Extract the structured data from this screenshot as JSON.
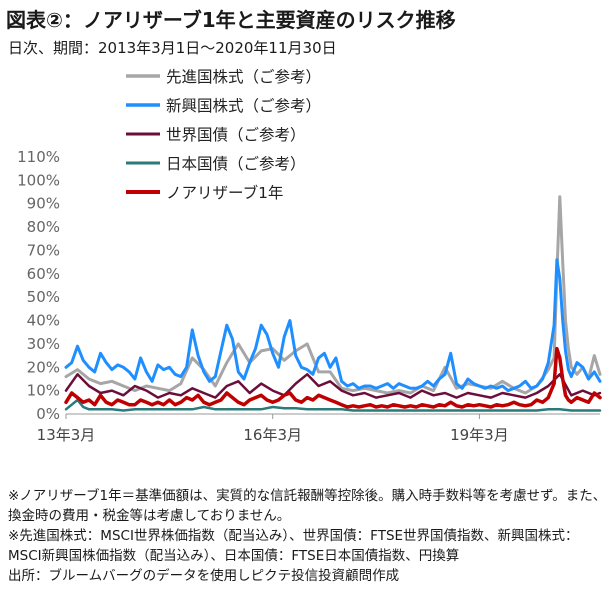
{
  "title": "図表②：ノアリザーブ1年と主要資産のリスク推移",
  "subtitle": "日次、期間：2013年3月1日～2020年11月30日",
  "notes": [
    "※ノアリザーブ1年＝基準価額は、実質的な信託報酬等控除後。購入時手数料等を考慮せず。また、換金時の費用・税金等は考慮しておりません。",
    "※先進国株式：MSCI世界株価指数（配当込み）、世界国債：FTSE世界国債指数、新興国株式：MSCI新興国株価指数（配当込み）、日本国債：FTSE日本国債指数、円換算",
    "出所：ブルームバーグのデータを使用しピクテ投信投資顧問作成"
  ],
  "chart_data": {
    "type": "line",
    "x_unit": "month_index_from_2013-03",
    "x_range": [
      0,
      93
    ],
    "y_unit": "%",
    "ylim": [
      0,
      110
    ],
    "yticks": [
      "0%",
      "10%",
      "20%",
      "30%",
      "40%",
      "50%",
      "60%",
      "70%",
      "80%",
      "90%",
      "100%",
      "110%"
    ],
    "ytick_values": [
      0,
      10,
      20,
      30,
      40,
      50,
      60,
      70,
      80,
      90,
      100,
      110
    ],
    "xticks": [
      {
        "label": "13年3月",
        "x": 0
      },
      {
        "label": "16年3月",
        "x": 36
      },
      {
        "label": "19年3月",
        "x": 72
      }
    ],
    "grid": false,
    "legend_position": "top-left",
    "series": [
      {
        "name": "先進国株式（ご参考）",
        "color": "#a6a6a6",
        "width": 3,
        "x": [
          0,
          2,
          4,
          6,
          8,
          10,
          12,
          14,
          16,
          18,
          20,
          22,
          24,
          26,
          28,
          30,
          32,
          34,
          36,
          38,
          40,
          42,
          44,
          46,
          48,
          50,
          52,
          54,
          56,
          58,
          60,
          62,
          64,
          66,
          68,
          70,
          72,
          74,
          76,
          78,
          80,
          82,
          84,
          85,
          85.5,
          86,
          86.5,
          87,
          87.5,
          88,
          89,
          90,
          91,
          92,
          93
        ],
        "y": [
          16,
          19,
          15,
          13,
          14,
          12,
          10,
          12,
          11,
          10,
          13,
          24,
          19,
          12,
          22,
          30,
          22,
          27,
          28,
          23,
          27,
          30,
          18,
          18,
          11,
          10,
          11,
          10,
          9,
          10,
          9,
          12,
          10,
          20,
          11,
          13,
          12,
          11,
          14,
          11,
          9,
          12,
          19,
          24,
          60,
          93,
          65,
          40,
          28,
          20,
          17,
          20,
          15,
          25,
          17
        ]
      },
      {
        "name": "新興国株式（ご参考）",
        "color": "#1f8fff",
        "width": 3,
        "x": [
          0,
          1,
          2,
          3,
          4,
          5,
          6,
          7,
          8,
          9,
          10,
          11,
          12,
          13,
          14,
          15,
          16,
          17,
          18,
          19,
          20,
          21,
          22,
          23,
          24,
          25,
          26,
          27,
          28,
          29,
          30,
          31,
          32,
          33,
          34,
          35,
          36,
          37,
          38,
          39,
          40,
          41,
          42,
          43,
          44,
          45,
          46,
          47,
          48,
          49,
          50,
          51,
          52,
          53,
          54,
          55,
          56,
          57,
          58,
          59,
          60,
          61,
          62,
          63,
          64,
          65,
          66,
          67,
          68,
          69,
          70,
          71,
          72,
          73,
          74,
          75,
          76,
          77,
          78,
          79,
          80,
          81,
          82,
          83,
          84,
          85,
          85.5,
          86,
          86.5,
          87,
          87.5,
          88,
          89,
          90,
          91,
          92,
          93
        ],
        "y": [
          20,
          22,
          29,
          23,
          20,
          18,
          26,
          22,
          19,
          21,
          20,
          18,
          15,
          24,
          18,
          14,
          21,
          19,
          20,
          17,
          16,
          20,
          36,
          25,
          18,
          14,
          16,
          27,
          38,
          32,
          18,
          15,
          22,
          28,
          38,
          34,
          26,
          20,
          33,
          40,
          25,
          20,
          19,
          17,
          24,
          26,
          20,
          24,
          14,
          12,
          13,
          11,
          12,
          12,
          11,
          12,
          13,
          11,
          13,
          12,
          11,
          11,
          12,
          14,
          12,
          15,
          17,
          26,
          13,
          11,
          15,
          13,
          12,
          11,
          12,
          11,
          12,
          10,
          11,
          12,
          14,
          11,
          12,
          15,
          22,
          38,
          66,
          58,
          40,
          27,
          19,
          16,
          22,
          20,
          15,
          18,
          14
        ]
      },
      {
        "name": "世界国債（ご参考）",
        "color": "#6b0f3a",
        "width": 2.5,
        "x": [
          0,
          2,
          4,
          6,
          8,
          10,
          12,
          14,
          16,
          18,
          20,
          22,
          24,
          26,
          28,
          30,
          32,
          34,
          36,
          38,
          40,
          42,
          44,
          46,
          48,
          50,
          52,
          54,
          56,
          58,
          60,
          62,
          64,
          66,
          68,
          70,
          72,
          74,
          76,
          78,
          80,
          82,
          84,
          86,
          88,
          90,
          92,
          93
        ],
        "y": [
          10,
          17,
          12,
          9,
          10,
          8,
          12,
          10,
          7,
          9,
          8,
          11,
          9,
          7,
          12,
          14,
          9,
          13,
          10,
          8,
          13,
          17,
          12,
          14,
          10,
          8,
          9,
          7,
          8,
          9,
          7,
          10,
          8,
          9,
          7,
          9,
          8,
          7,
          9,
          8,
          7,
          9,
          12,
          17,
          8,
          10,
          8,
          9
        ]
      },
      {
        "name": "日本国債（ご参考）",
        "color": "#2a7a7a",
        "width": 2.5,
        "x": [
          0,
          1,
          2,
          3,
          4,
          5,
          6,
          8,
          10,
          12,
          14,
          16,
          18,
          20,
          22,
          24,
          26,
          28,
          30,
          32,
          34,
          36,
          38,
          40,
          42,
          44,
          46,
          48,
          50,
          52,
          54,
          56,
          58,
          60,
          62,
          64,
          66,
          68,
          70,
          72,
          74,
          76,
          78,
          80,
          82,
          84,
          86,
          88,
          90,
          92,
          93
        ],
        "y": [
          2,
          4,
          6,
          3,
          2,
          2,
          2,
          2,
          1.5,
          2,
          2,
          2,
          2,
          2,
          2,
          3,
          2,
          2,
          2,
          2,
          2,
          3,
          2.5,
          2.5,
          2,
          2,
          2,
          2,
          1.5,
          1.5,
          1.5,
          1.5,
          1.5,
          1.5,
          1.5,
          1.5,
          1.5,
          1.5,
          1.5,
          1.5,
          1.5,
          1.5,
          1.5,
          1.5,
          1.5,
          2,
          2,
          1.5,
          1.5,
          1.5,
          1.5
        ]
      },
      {
        "name": "ノアリザーブ1年",
        "color": "#c00000",
        "width": 3.5,
        "x": [
          0,
          1,
          2,
          3,
          4,
          5,
          6,
          7,
          8,
          9,
          10,
          11,
          12,
          13,
          14,
          15,
          16,
          17,
          18,
          19,
          20,
          21,
          22,
          23,
          24,
          25,
          26,
          27,
          28,
          29,
          30,
          31,
          32,
          33,
          34,
          35,
          36,
          37,
          38,
          39,
          40,
          41,
          42,
          43,
          44,
          45,
          46,
          47,
          48,
          49,
          50,
          51,
          52,
          53,
          54,
          55,
          56,
          57,
          58,
          59,
          60,
          61,
          62,
          63,
          64,
          65,
          66,
          67,
          68,
          69,
          70,
          71,
          72,
          73,
          74,
          75,
          76,
          77,
          78,
          79,
          80,
          81,
          82,
          83,
          84,
          85,
          85.5,
          86,
          86.5,
          87,
          87.5,
          88,
          89,
          90,
          91,
          92,
          93
        ],
        "y": [
          5,
          9,
          7,
          5,
          6,
          4,
          8,
          5,
          4,
          6,
          5,
          4,
          4,
          6,
          5,
          4,
          5,
          4,
          6,
          4,
          5,
          7,
          6,
          8,
          5,
          4,
          5,
          6,
          9,
          7,
          5,
          4,
          6,
          7,
          8,
          6,
          5,
          6,
          8,
          9,
          6,
          5,
          7,
          6,
          8,
          7,
          6,
          5,
          4,
          3,
          3.5,
          3,
          3.5,
          4,
          3,
          3.5,
          3,
          4,
          3.5,
          3,
          3.5,
          3,
          4,
          3.5,
          3,
          4,
          3.5,
          5,
          3.5,
          3,
          4,
          3.5,
          4,
          3.5,
          3,
          4,
          3.5,
          4,
          5,
          4,
          3.5,
          4,
          6,
          5,
          7,
          13,
          28,
          24,
          15,
          8,
          6,
          5,
          7,
          6,
          5,
          9,
          7
        ]
      }
    ]
  }
}
